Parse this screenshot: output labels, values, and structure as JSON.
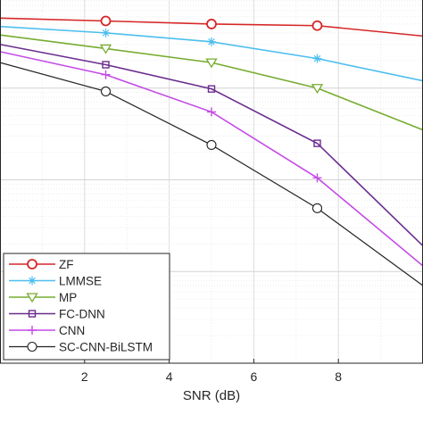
{
  "chart_data": {
    "type": "line",
    "xlabel": "SNR (dB)",
    "ylabel": "",
    "title": "",
    "x_ticks": [
      2,
      4,
      6,
      8
    ],
    "x_tick_labels": [
      "2",
      "4",
      "6",
      "8"
    ],
    "xlim": [
      0,
      10
    ],
    "yscale": "log",
    "ylim": [
      0.0001,
      1
    ],
    "grid": true,
    "legend_position": "bottom-left",
    "x": [
      0,
      2.5,
      5,
      7.5,
      10
    ],
    "series": [
      {
        "name": "ZF",
        "color": "#d62728",
        "marker": "circle",
        "values": [
          0.58,
          0.54,
          0.5,
          0.48,
          0.37
        ]
      },
      {
        "name": "LMMSE",
        "color": "#4dbeee",
        "marker": "asterisk",
        "values": [
          0.47,
          0.4,
          0.32,
          0.21,
          0.12
        ]
      },
      {
        "name": "MP",
        "color": "#77ac30",
        "marker": "triangle-down",
        "values": [
          0.38,
          0.27,
          0.19,
          0.1,
          0.035
        ]
      },
      {
        "name": "FC-DNN",
        "color": "#6a2c8e",
        "marker": "square",
        "values": [
          0.3,
          0.18,
          0.098,
          0.025,
          0.0019
        ]
      },
      {
        "name": "CNN",
        "color": "#c44be6",
        "marker": "plus",
        "values": [
          0.25,
          0.14,
          0.055,
          0.0105,
          0.00115
        ]
      },
      {
        "name": "SC-CNN-BiLSTM",
        "color": "#222222",
        "marker": "circle-open",
        "values": [
          0.19,
          0.092,
          0.024,
          0.0049,
          0.0007
        ]
      }
    ]
  }
}
